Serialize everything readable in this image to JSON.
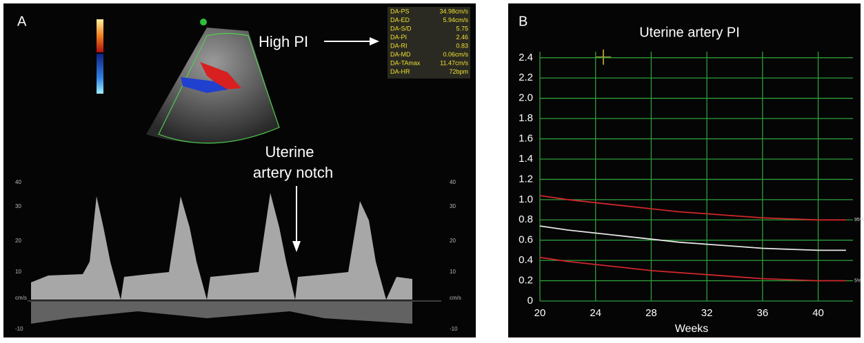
{
  "panel_a": {
    "label": "A",
    "high_pi": "High PI",
    "notch": [
      "Uterine",
      "artery notch"
    ],
    "measurements": [
      [
        "DA-PS",
        "34.98cm/s"
      ],
      [
        "DA-ED",
        "5.94cm/s"
      ],
      [
        "DA-S/D",
        "5.75"
      ],
      [
        "DA-PI",
        "2.46"
      ],
      [
        "DA-RI",
        "0.83"
      ],
      [
        "DA-MD",
        "0.06cm/s"
      ],
      [
        "DA-TAmax",
        "11.47cm/s"
      ],
      [
        "DA-HR",
        "72bpm"
      ]
    ],
    "doppler_scale": [
      "40",
      "30",
      "20",
      "10",
      "cm/s",
      "-10"
    ]
  },
  "panel_b_label": "B",
  "chart_data": {
    "type": "line",
    "title": "Uterine artery PI",
    "x_label": "Weeks",
    "x": [
      20,
      22,
      24,
      26,
      28,
      30,
      32,
      34,
      36,
      38,
      40,
      42
    ],
    "series": [
      {
        "name": "95%",
        "color": "#d0262a",
        "values": [
          1.04,
          1.0,
          0.97,
          0.94,
          0.91,
          0.88,
          0.86,
          0.84,
          0.82,
          0.81,
          0.8,
          0.8
        ]
      },
      {
        "color": "#e6e6e6",
        "values": [
          0.74,
          0.7,
          0.67,
          0.64,
          0.61,
          0.58,
          0.56,
          0.54,
          0.52,
          0.51,
          0.5,
          0.5
        ]
      },
      {
        "name": "5%",
        "color": "#d0262a",
        "values": [
          0.43,
          0.39,
          0.36,
          0.33,
          0.3,
          0.28,
          0.26,
          0.24,
          0.22,
          0.21,
          0.2,
          0.2
        ]
      }
    ],
    "xlim": [
      20,
      42.5
    ],
    "ylim": [
      0,
      2.46
    ],
    "xticks": [
      20,
      24,
      28,
      32,
      36,
      40
    ],
    "yticks": [
      0,
      0.2,
      0.4,
      0.6,
      0.8,
      {
        "value": 1,
        "label": "1.0"
      },
      1.2,
      1.4,
      1.6,
      1.8,
      {
        "value": 2,
        "label": "2.0"
      },
      2.2,
      2.4
    ],
    "grid": true,
    "grid_color": "#2e9e3a"
  }
}
